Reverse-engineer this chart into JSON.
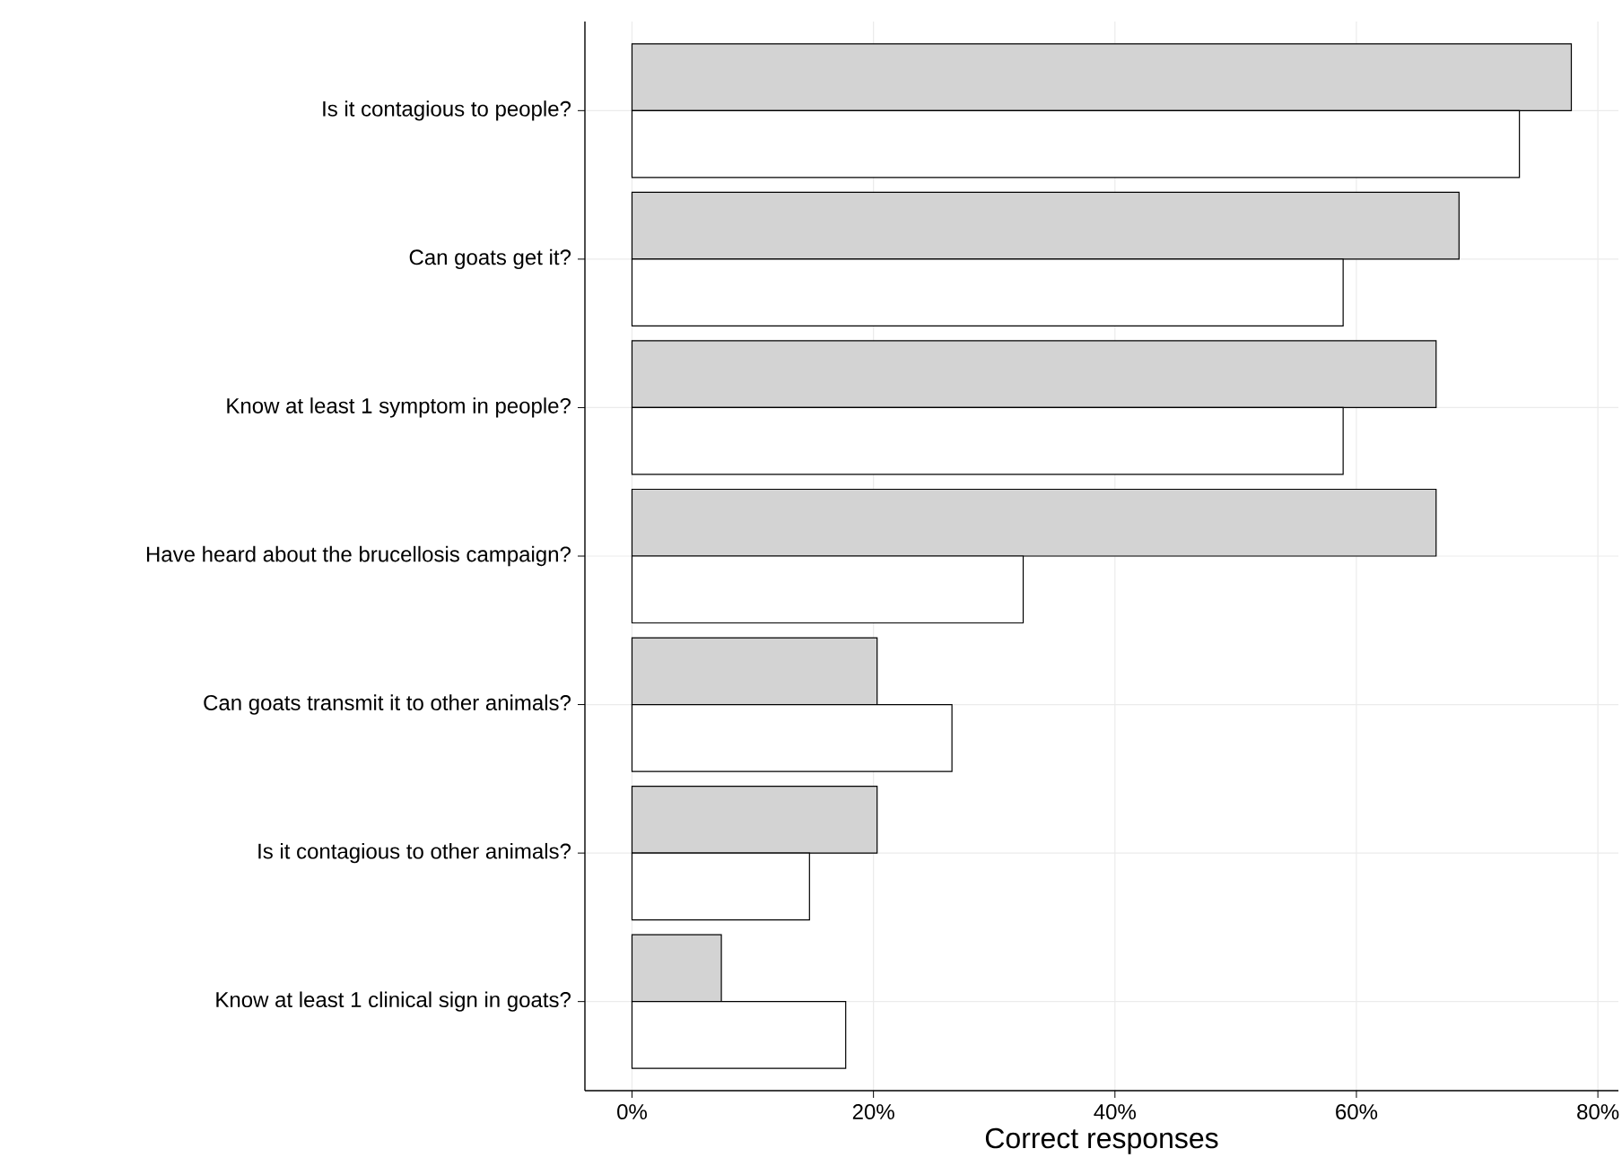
{
  "chart_data": {
    "type": "bar",
    "orientation": "horizontal",
    "xlabel": "Correct responses",
    "categories": [
      "Is it contagious to people?",
      "Can goats get it?",
      "Know at least 1 symptom in people?",
      "Have heard about the brucellosis campaign?",
      "Can goats transmit it to other animals?",
      "Is it contagious to other animals?",
      "Know at least 1 clinical sign in goats?"
    ],
    "series": [
      {
        "color": "#d3d3d3",
        "values": [
          77.8,
          68.5,
          66.6,
          66.6,
          20.3,
          20.3,
          7.4
        ]
      },
      {
        "color": "#ffffff",
        "values": [
          73.5,
          58.9,
          58.9,
          32.4,
          26.5,
          14.7,
          17.7
        ]
      }
    ],
    "xlim": [
      -3.9,
      81.7
    ],
    "xticks": [
      {
        "value": 0,
        "label": "0%"
      },
      {
        "value": 20,
        "label": "20%"
      },
      {
        "value": 40,
        "label": "40%"
      },
      {
        "value": 60,
        "label": "60%"
      },
      {
        "value": 80,
        "label": "80%"
      }
    ],
    "grid": true
  }
}
